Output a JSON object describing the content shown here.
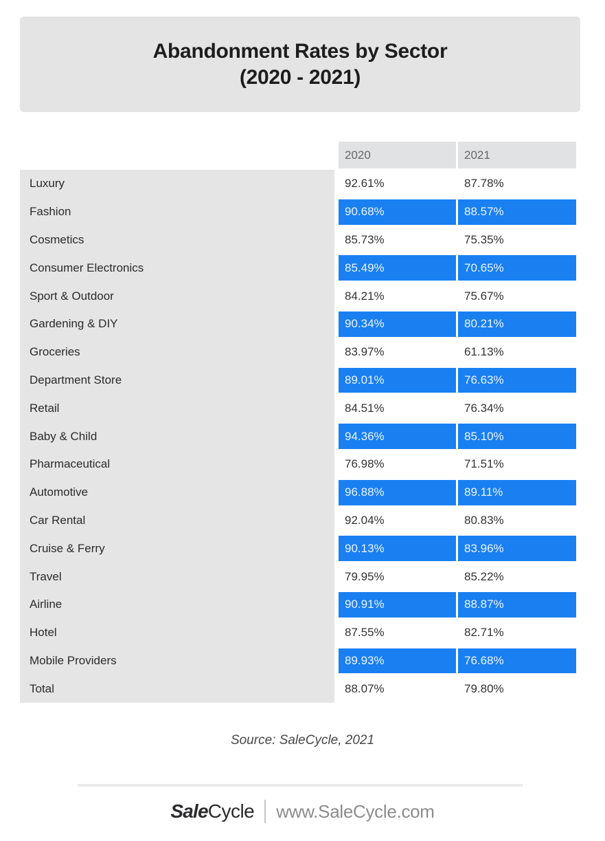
{
  "title": {
    "line1": "Abandonment Rates by Sector",
    "line2": "(2020 - 2021)"
  },
  "table": {
    "columns": [
      "2020",
      "2021"
    ],
    "rows": [
      {
        "sector": "Luxury",
        "y2020": "92.61%",
        "y2021": "87.78%",
        "highlight": false
      },
      {
        "sector": "Fashion",
        "y2020": "90.68%",
        "y2021": "88.57%",
        "highlight": true
      },
      {
        "sector": "Cosmetics",
        "y2020": "85.73%",
        "y2021": "75.35%",
        "highlight": false
      },
      {
        "sector": "Consumer Electronics",
        "y2020": "85.49%",
        "y2021": "70.65%",
        "highlight": true
      },
      {
        "sector": "Sport & Outdoor",
        "y2020": "84.21%",
        "y2021": "75.67%",
        "highlight": false
      },
      {
        "sector": "Gardening & DIY",
        "y2020": "90.34%",
        "y2021": "80.21%",
        "highlight": true
      },
      {
        "sector": "Groceries",
        "y2020": "83.97%",
        "y2021": "61.13%",
        "highlight": false
      },
      {
        "sector": "Department Store",
        "y2020": "89.01%",
        "y2021": "76.63%",
        "highlight": true
      },
      {
        "sector": "Retail",
        "y2020": "84.51%",
        "y2021": "76.34%",
        "highlight": false
      },
      {
        "sector": "Baby & Child",
        "y2020": "94.36%",
        "y2021": "85.10%",
        "highlight": true
      },
      {
        "sector": "Pharmaceutical",
        "y2020": "76.98%",
        "y2021": "71.51%",
        "highlight": false
      },
      {
        "sector": "Automotive",
        "y2020": "96.88%",
        "y2021": "89.11%",
        "highlight": true
      },
      {
        "sector": "Car Rental",
        "y2020": "92.04%",
        "y2021": "80.83%",
        "highlight": false
      },
      {
        "sector": "Cruise & Ferry",
        "y2020": "90.13%",
        "y2021": "83.96%",
        "highlight": true
      },
      {
        "sector": "Travel",
        "y2020": "79.95%",
        "y2021": "85.22%",
        "highlight": false
      },
      {
        "sector": "Airline",
        "y2020": "90.91%",
        "y2021": "88.87%",
        "highlight": true
      },
      {
        "sector": "Hotel",
        "y2020": "87.55%",
        "y2021": "82.71%",
        "highlight": false
      },
      {
        "sector": "Mobile Providers",
        "y2020": "89.93%",
        "y2021": "76.68%",
        "highlight": true
      },
      {
        "sector": "Total",
        "y2020": "88.07%",
        "y2021": "79.80%",
        "highlight": false
      }
    ]
  },
  "source": "Source: SaleCycle, 2021",
  "footer": {
    "logo_bold": "Sale",
    "logo_regular": "Cycle",
    "url": "www.SaleCycle.com"
  },
  "colors": {
    "highlight_blue": "#1a80f2",
    "highlight_text": "#edf4fe",
    "label_column_gray": "#e5e5e5",
    "header_cell_gray": "#e1e2e4",
    "title_box_gray": "#e4e4e4"
  },
  "chart_data": {
    "type": "table",
    "title": "Abandonment Rates by Sector (2020 - 2021)",
    "categories": [
      "Luxury",
      "Fashion",
      "Cosmetics",
      "Consumer Electronics",
      "Sport & Outdoor",
      "Gardening & DIY",
      "Groceries",
      "Department Store",
      "Retail",
      "Baby & Child",
      "Pharmaceutical",
      "Automotive",
      "Car Rental",
      "Cruise & Ferry",
      "Travel",
      "Airline",
      "Hotel",
      "Mobile Providers",
      "Total"
    ],
    "series": [
      {
        "name": "2020",
        "values": [
          92.61,
          90.68,
          85.73,
          85.49,
          84.21,
          90.34,
          83.97,
          89.01,
          84.51,
          94.36,
          76.98,
          96.88,
          92.04,
          90.13,
          79.95,
          90.91,
          87.55,
          89.93,
          88.07
        ]
      },
      {
        "name": "2021",
        "values": [
          87.78,
          88.57,
          75.35,
          70.65,
          75.67,
          80.21,
          61.13,
          76.63,
          76.34,
          85.1,
          71.51,
          89.11,
          80.83,
          83.96,
          85.22,
          88.87,
          82.71,
          76.68,
          79.8
        ]
      }
    ],
    "unit": "%",
    "highlighted_rows": [
      "Fashion",
      "Consumer Electronics",
      "Gardening & DIY",
      "Department Store",
      "Baby & Child",
      "Automotive",
      "Cruise & Ferry",
      "Airline",
      "Mobile Providers"
    ],
    "source": "Source: SaleCycle, 2021"
  }
}
